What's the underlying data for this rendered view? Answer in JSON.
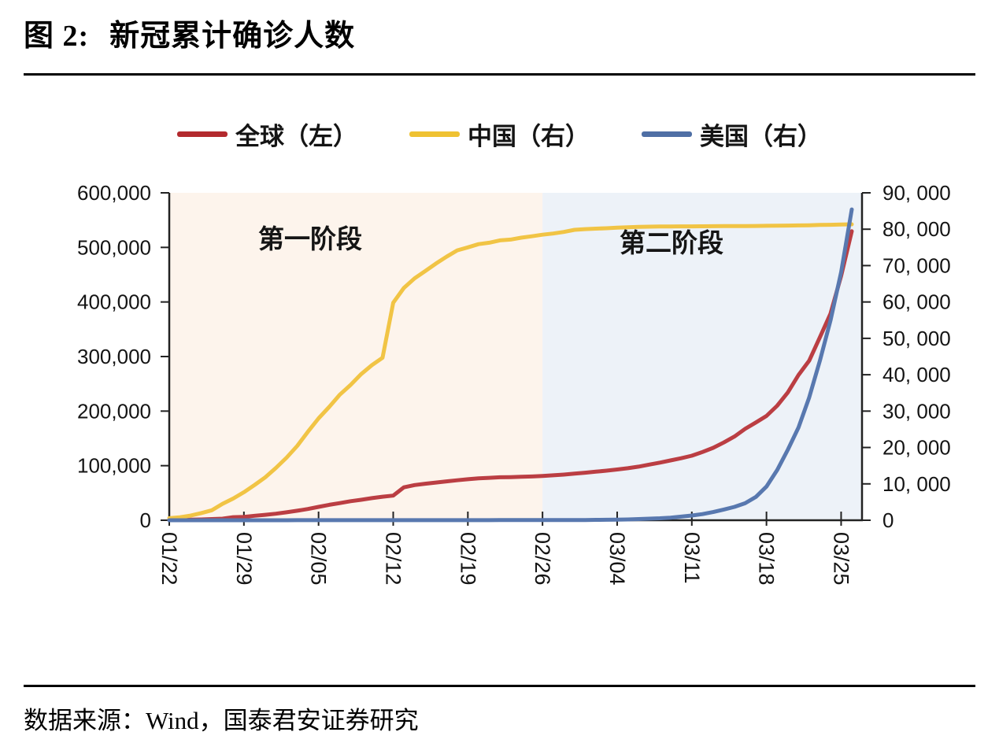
{
  "figure": {
    "number_label": "图 2:",
    "title": "新冠累计确诊人数"
  },
  "legend": {
    "items": [
      {
        "label": "全球（左）",
        "color": "#b32a2e"
      },
      {
        "label": "中国（右）",
        "color": "#efc232"
      },
      {
        "label": "美国（右）",
        "color": "#4f6fa5"
      }
    ]
  },
  "source": {
    "text": "数据来源：Wind，国泰君安证券研究"
  },
  "chart_data": {
    "type": "line",
    "title": "新冠累计确诊人数",
    "legend_position": "top",
    "x_label_rotation_deg": 90,
    "x": [
      "01/22",
      "01/23",
      "01/24",
      "01/25",
      "01/26",
      "01/27",
      "01/28",
      "01/29",
      "01/30",
      "01/31",
      "02/01",
      "02/02",
      "02/03",
      "02/04",
      "02/05",
      "02/06",
      "02/07",
      "02/08",
      "02/09",
      "02/10",
      "02/11",
      "02/12",
      "02/13",
      "02/14",
      "02/15",
      "02/16",
      "02/17",
      "02/18",
      "02/19",
      "02/20",
      "02/21",
      "02/22",
      "02/23",
      "02/24",
      "02/25",
      "02/26",
      "02/27",
      "02/28",
      "02/29",
      "03/01",
      "03/02",
      "03/03",
      "03/04",
      "03/05",
      "03/06",
      "03/07",
      "03/08",
      "03/09",
      "03/10",
      "03/11",
      "03/12",
      "03/13",
      "03/14",
      "03/15",
      "03/16",
      "03/17",
      "03/18",
      "03/19",
      "03/20",
      "03/21",
      "03/22",
      "03/23",
      "03/24",
      "03/25",
      "03/26"
    ],
    "x_tick_labels": [
      "01/22",
      "01/29",
      "02/05",
      "02/12",
      "02/19",
      "02/26",
      "03/04",
      "03/11",
      "03/18",
      "03/25"
    ],
    "left_axis": {
      "min": 0,
      "max": 600000,
      "tick_labels": [
        "0",
        "100,000",
        "200,000",
        "300,000",
        "400,000",
        "500,000",
        "600,000"
      ]
    },
    "right_axis": {
      "min": 0,
      "max": 90000,
      "tick_labels": [
        "0",
        "10, 000",
        "20, 000",
        "30, 000",
        "40, 000",
        "50, 000",
        "60, 000",
        "70, 000",
        "80, 000",
        "90, 000"
      ]
    },
    "regions": [
      {
        "label": "第一阶段",
        "from": "01/22",
        "to": "02/26",
        "fill": "#fdf4ec"
      },
      {
        "label": "第二阶段",
        "from": "02/26",
        "to": "03/26",
        "fill": "#edf2f8"
      }
    ],
    "series": [
      {
        "name": "全球（左）",
        "axis": "left",
        "color": "#bb3e43",
        "values": [
          555,
          654,
          941,
          1434,
          2118,
          2927,
          5578,
          6166,
          8234,
          9927,
          12038,
          14557,
          17391,
          20630,
          24554,
          28276,
          31481,
          34886,
          37558,
          40554,
          43103,
          45171,
          60328,
          64543,
          66887,
          69030,
          71224,
          73260,
          75204,
          76677,
          77794,
          78811,
          78985,
          79561,
          80239,
          81109,
          82294,
          83652,
          85403,
          87137,
          88948,
          90869,
          93090,
          95324,
          98192,
          101927,
          105586,
          109577,
          113702,
          118319,
          125048,
          132758,
          142539,
          153517,
          167515,
          179111,
          191127,
          209839,
          234073,
          266073,
          292142,
          334981,
          378287,
          448000,
          529600
        ]
      },
      {
        "name": "中国（右）",
        "axis": "right",
        "color": "#f1c445",
        "values": [
          571,
          830,
          1287,
          1975,
          2744,
          4515,
          5974,
          7711,
          9692,
          11791,
          14380,
          17205,
          20438,
          24324,
          28018,
          31161,
          34546,
          37198,
          40171,
          42638,
          44653,
          59804,
          63851,
          66492,
          68500,
          70548,
          72436,
          74185,
          75002,
          75891,
          76288,
          76936,
          77150,
          77658,
          78064,
          78497,
          78824,
          79251,
          79824,
          80026,
          80151,
          80270,
          80409,
          80552,
          80651,
          80695,
          80735,
          80754,
          80778,
          80793,
          80813,
          80824,
          80844,
          80860,
          80881,
          80894,
          80928,
          80967,
          81008,
          81054,
          81093,
          81171,
          81218,
          81285,
          81340
        ]
      },
      {
        "name": "美国（右）",
        "axis": "right",
        "color": "#5878af",
        "values": [
          1,
          1,
          2,
          2,
          5,
          5,
          5,
          5,
          5,
          7,
          8,
          8,
          11,
          11,
          11,
          12,
          12,
          12,
          12,
          12,
          13,
          13,
          13,
          13,
          13,
          13,
          13,
          13,
          15,
          15,
          15,
          35,
          35,
          53,
          57,
          59,
          60,
          65,
          68,
          75,
          100,
          124,
          158,
          221,
          319,
          435,
          541,
          704,
          994,
          1301,
          1697,
          2247,
          2943,
          3680,
          4663,
          6411,
          9259,
          13789,
          19367,
          25493,
          33680,
          43781,
          54856,
          68211,
          85435
        ]
      }
    ]
  }
}
